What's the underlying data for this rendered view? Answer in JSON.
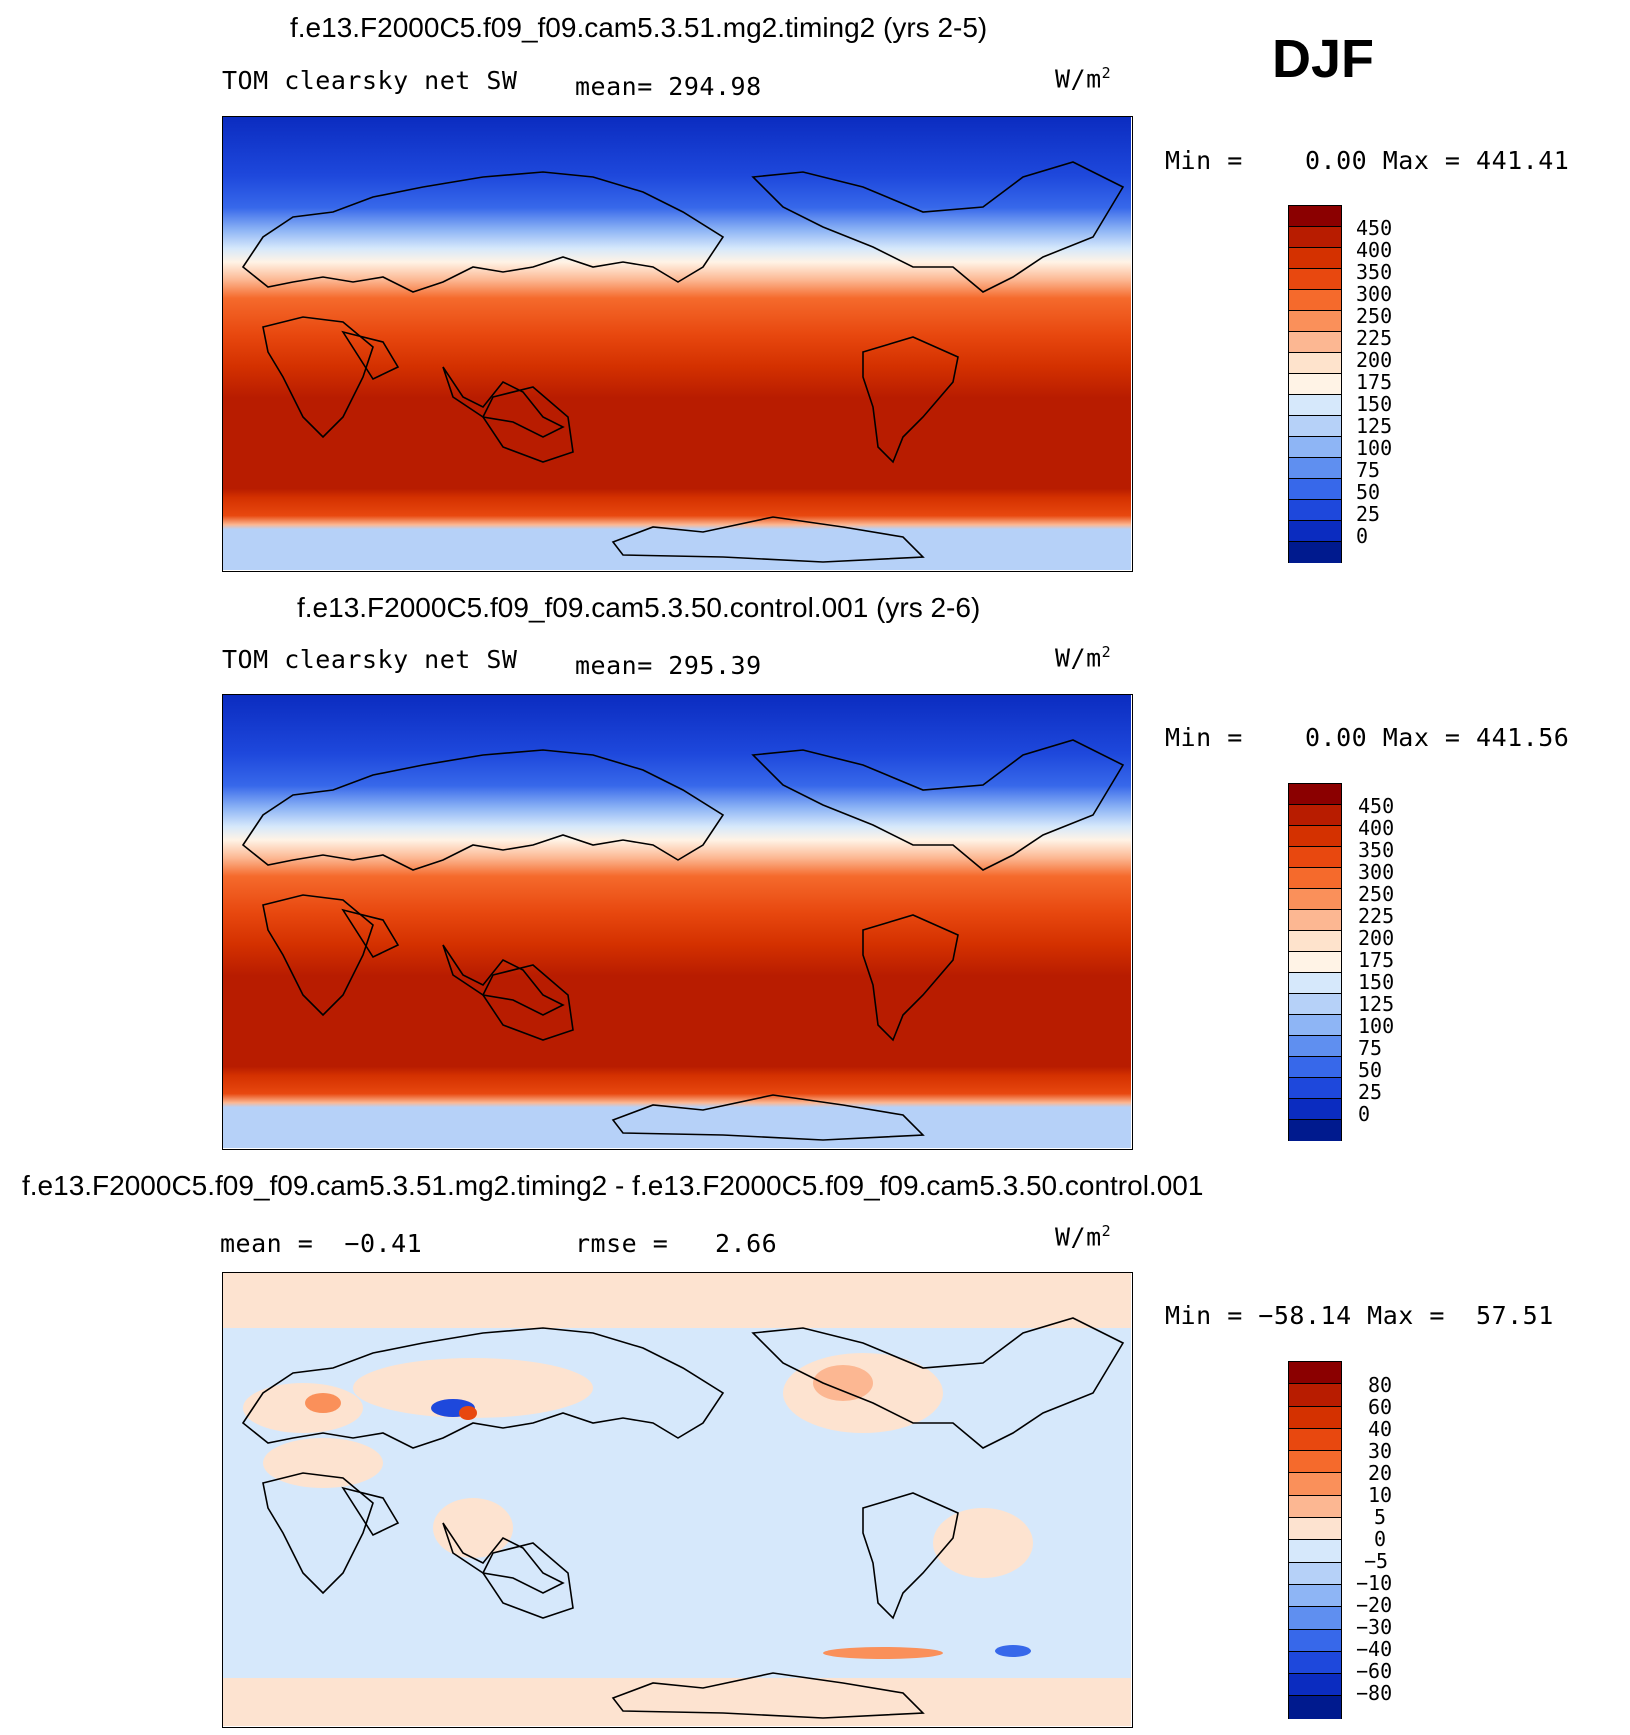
{
  "season": "DJF",
  "units_base": "W/m",
  "units_exp": "2",
  "panels": [
    {
      "title": "f.e13.F2000C5.f09_f09.cam5.3.51.mg2.timing2 (yrs 2-5)",
      "variable": "TOM clearsky net SW",
      "stat1": "mean= 294.98",
      "stat2": "",
      "minmax": "Min =    0.00 Max = 441.41"
    },
    {
      "title": "f.e13.F2000C5.f09_f09.cam5.3.50.control.001 (yrs 2-6)",
      "variable": "TOM clearsky net SW",
      "stat1": "mean= 295.39",
      "stat2": "",
      "minmax": "Min =    0.00 Max = 441.56"
    },
    {
      "title": "f.e13.F2000C5.f09_f09.cam5.3.51.mg2.timing2 - f.e13.F2000C5.f09_f09.cam5.3.50.control.001",
      "variable": "mean =  −0.41",
      "stat1": "rmse =   2.66",
      "stat2": "",
      "minmax": "Min = −58.14 Max =  57.51"
    }
  ],
  "colorbars": {
    "absolute": {
      "labels": [
        "450",
        "400",
        "350",
        "300",
        "250",
        "225",
        "200",
        "175",
        "150",
        "125",
        "100",
        "75",
        "50",
        "25",
        "0"
      ],
      "colors": [
        "#8b0000",
        "#b81c00",
        "#d43100",
        "#e8480f",
        "#f56a2c",
        "#fa905a",
        "#fcb792",
        "#fee3cc",
        "#fff3e6",
        "#d6e8fb",
        "#b6d1f8",
        "#8eb5f5",
        "#5f8ff0",
        "#3768ea",
        "#1e48dc",
        "#0b2cc0",
        "#001a8e"
      ]
    },
    "difference": {
      "labels": [
        "80",
        "60",
        "40",
        "30",
        "20",
        "10",
        "5",
        "0",
        "−5",
        "−10",
        "−20",
        "−30",
        "−40",
        "−60",
        "−80"
      ],
      "colors": [
        "#8b0000",
        "#b81c00",
        "#d43100",
        "#e8480f",
        "#f56a2c",
        "#fa905a",
        "#fcb792",
        "#fde3d0",
        "#d6e8fb",
        "#b6d1f8",
        "#8eb5f5",
        "#5f8ff0",
        "#3768ea",
        "#1e48dc",
        "#0b2cc0",
        "#001a8e"
      ]
    }
  }
}
